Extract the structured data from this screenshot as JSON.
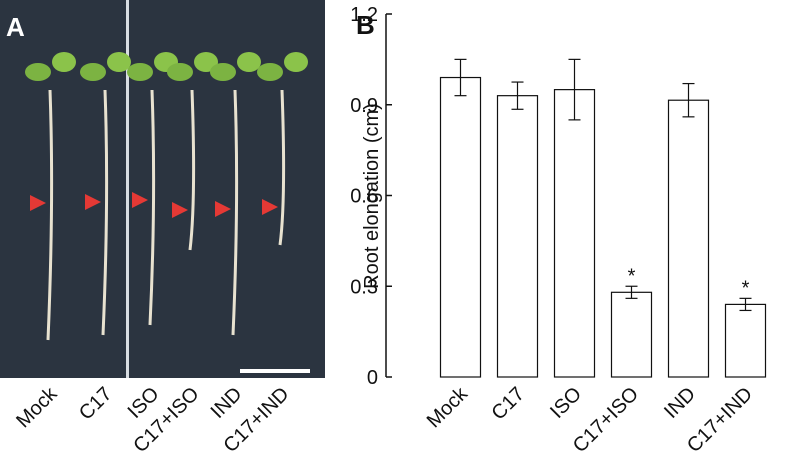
{
  "panel_a": {
    "label": "A",
    "lanes": [
      "Mock",
      "C17",
      "ISO",
      "C17+ISO",
      "IND",
      "C17+IND"
    ]
  },
  "chart_data": {
    "type": "bar",
    "label": "B",
    "y_label": "Root elongation (cm)",
    "categories": [
      "Mock",
      "C17",
      "ISO",
      "C17+ISO",
      "IND",
      "C17+IND"
    ],
    "values": [
      0.99,
      0.93,
      0.95,
      0.28,
      0.915,
      0.24
    ],
    "errors": [
      0.06,
      0.045,
      0.1,
      0.02,
      0.055,
      0.02
    ],
    "color": "#ffffff",
    "ylim": [
      0,
      1.2
    ],
    "yticks": [
      0,
      0.3,
      0.6,
      0.9,
      1.2
    ],
    "annotations": [
      {
        "text": "*",
        "category": "C17+ISO"
      },
      {
        "text": "*",
        "category": "C17+IND"
      }
    ]
  }
}
